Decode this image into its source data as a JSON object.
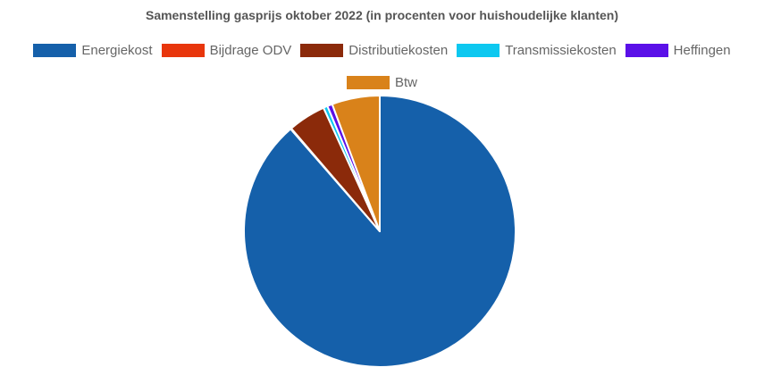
{
  "chart_data": {
    "type": "pie",
    "title": "Samenstelling gasprijs oktober 2022 (in procenten voor huishoudelijke klanten)",
    "series": [
      {
        "name": "Energiekost",
        "value": 88.6,
        "color": "#1560AA"
      },
      {
        "name": "Bijdrage ODV",
        "value": 0.1,
        "color": "#E8360C"
      },
      {
        "name": "Distributiekosten",
        "value": 4.5,
        "color": "#8B2A0A"
      },
      {
        "name": "Transmissiekosten",
        "value": 0.5,
        "color": "#0DC8F0"
      },
      {
        "name": "Heffingen",
        "value": 0.6,
        "color": "#5A10E8"
      },
      {
        "name": "Btw",
        "value": 5.7,
        "color": "#D9821A"
      }
    ],
    "legend_position": "top"
  }
}
